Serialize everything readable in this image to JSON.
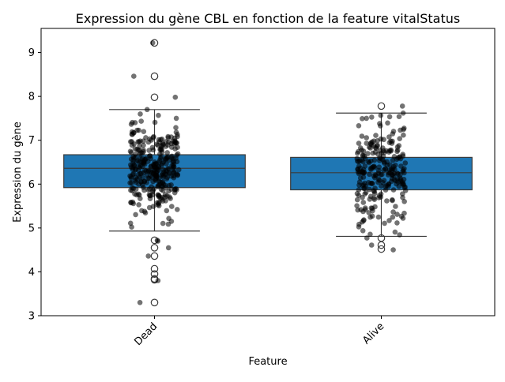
{
  "chart_data": {
    "type": "box",
    "title": "Expression du gène CBL en fonction de la feature vitalStatus",
    "xlabel": "Feature",
    "ylabel": "Expression du gène",
    "ylim": [
      3,
      9.55
    ],
    "yticks": [
      3,
      4,
      5,
      6,
      7,
      8,
      9
    ],
    "categories": [
      "Dead",
      "Alive"
    ],
    "box_color": "#1f77b4",
    "point_color": "#000000",
    "boxes": [
      {
        "category": "Dead",
        "whisker_low": 4.93,
        "q1": 5.92,
        "median": 6.36,
        "q3": 6.67,
        "whisker_high": 7.7,
        "outliers": [
          9.22,
          8.46,
          7.98,
          4.72,
          4.55,
          4.36,
          4.07,
          3.95,
          3.84,
          3.82,
          3.3
        ]
      },
      {
        "category": "Alive",
        "whisker_low": 4.81,
        "q1": 5.87,
        "median": 6.26,
        "q3": 6.61,
        "whisker_high": 7.62,
        "outliers": [
          7.78,
          4.77,
          4.61,
          4.52
        ]
      }
    ],
    "strip": [
      {
        "category": "Dead",
        "n": 330,
        "visible_extremes": [
          9.22,
          8.46,
          7.98,
          7.7,
          7.6,
          7.5,
          3.8,
          3.3,
          4.36,
          4.55,
          4.72,
          4.7
        ]
      },
      {
        "category": "Alive",
        "n": 260,
        "visible_extremes": [
          7.78,
          7.62,
          7.5,
          4.61,
          4.5,
          4.77
        ]
      }
    ]
  }
}
